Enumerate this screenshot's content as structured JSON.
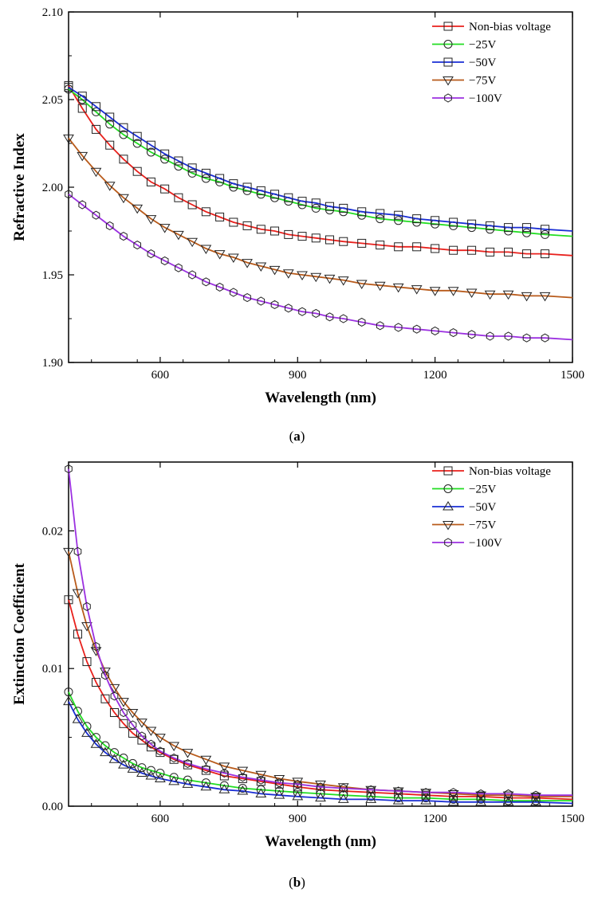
{
  "chart_data": [
    {
      "type": "line",
      "panel_label": "a",
      "xlabel": "Wavelength (nm)",
      "ylabel": "Refractive Index",
      "xlim": [
        400,
        1500
      ],
      "ylim": [
        1.9,
        2.1
      ],
      "xticks": [
        600,
        900,
        1200,
        1500
      ],
      "xtick_labels": [
        "600",
        "900",
        "1200",
        "1500"
      ],
      "yticks": [
        1.9,
        1.95,
        2.0,
        2.05,
        2.1
      ],
      "ytick_labels": [
        "1.90",
        "1.95",
        "2.00",
        "2.05",
        "2.10"
      ],
      "x": [
        400,
        430,
        460,
        490,
        520,
        550,
        580,
        610,
        640,
        670,
        700,
        730,
        760,
        790,
        820,
        850,
        880,
        910,
        940,
        970,
        1000,
        1040,
        1080,
        1120,
        1160,
        1200,
        1240,
        1280,
        1320,
        1360,
        1400,
        1440,
        1500
      ],
      "legend_position": "top-right",
      "series": [
        {
          "name": "Non-bias voltage",
          "color": "#e8201c",
          "marker": "square",
          "values": [
            2.058,
            2.045,
            2.033,
            2.024,
            2.016,
            2.009,
            2.003,
            1.999,
            1.994,
            1.99,
            1.986,
            1.983,
            1.98,
            1.978,
            1.976,
            1.975,
            1.973,
            1.972,
            1.971,
            1.97,
            1.969,
            1.968,
            1.967,
            1.966,
            1.966,
            1.965,
            1.964,
            1.964,
            1.963,
            1.963,
            1.962,
            1.962,
            1.961
          ]
        },
        {
          "name": "−25V",
          "color": "#22dd22",
          "marker": "circle",
          "values": [
            2.056,
            2.05,
            2.043,
            2.036,
            2.03,
            2.025,
            2.02,
            2.016,
            2.012,
            2.008,
            2.005,
            2.003,
            2.0,
            1.998,
            1.996,
            1.994,
            1.992,
            1.99,
            1.988,
            1.987,
            1.986,
            1.984,
            1.982,
            1.981,
            1.98,
            1.979,
            1.978,
            1.977,
            1.976,
            1.975,
            1.974,
            1.973,
            1.972
          ]
        },
        {
          "name": "−50V",
          "color": "#1a2ed4",
          "marker": "square",
          "values": [
            2.057,
            2.052,
            2.046,
            2.04,
            2.034,
            2.029,
            2.024,
            2.019,
            2.015,
            2.011,
            2.008,
            2.005,
            2.002,
            2.0,
            1.998,
            1.996,
            1.994,
            1.992,
            1.991,
            1.989,
            1.988,
            1.986,
            1.985,
            1.984,
            1.982,
            1.981,
            1.98,
            1.979,
            1.978,
            1.977,
            1.977,
            1.976,
            1.975
          ]
        },
        {
          "name": "−75V",
          "color": "#b85a1a",
          "marker": "triangle-down",
          "values": [
            2.028,
            2.018,
            2.009,
            2.001,
            1.994,
            1.988,
            1.982,
            1.977,
            1.973,
            1.969,
            1.965,
            1.962,
            1.96,
            1.957,
            1.955,
            1.953,
            1.951,
            1.95,
            1.949,
            1.948,
            1.947,
            1.945,
            1.944,
            1.943,
            1.942,
            1.941,
            1.941,
            1.94,
            1.939,
            1.939,
            1.938,
            1.938,
            1.937
          ]
        },
        {
          "name": "−100V",
          "color": "#9b30e0",
          "marker": "hexagon",
          "values": [
            1.996,
            1.99,
            1.984,
            1.978,
            1.972,
            1.967,
            1.962,
            1.958,
            1.954,
            1.95,
            1.946,
            1.943,
            1.94,
            1.937,
            1.935,
            1.933,
            1.931,
            1.929,
            1.928,
            1.926,
            1.925,
            1.923,
            1.921,
            1.92,
            1.919,
            1.918,
            1.917,
            1.916,
            1.915,
            1.915,
            1.914,
            1.914,
            1.913
          ]
        }
      ]
    },
    {
      "type": "line",
      "panel_label": "b",
      "xlabel": "Wavelength (nm)",
      "ylabel": "Extinction Coefficient",
      "xlim": [
        400,
        1500
      ],
      "ylim": [
        0,
        0.025
      ],
      "xticks": [
        600,
        900,
        1200,
        1500
      ],
      "xtick_labels": [
        "600",
        "900",
        "1200",
        "1500"
      ],
      "yticks": [
        0,
        0.01,
        0.02
      ],
      "ytick_labels": [
        "0.00",
        "0.01",
        "0.02"
      ],
      "x": [
        400,
        420,
        440,
        460,
        480,
        500,
        520,
        540,
        560,
        580,
        600,
        630,
        660,
        700,
        740,
        780,
        820,
        860,
        900,
        950,
        1000,
        1060,
        1120,
        1180,
        1240,
        1300,
        1360,
        1420,
        1500
      ],
      "legend_position": "top-right",
      "series": [
        {
          "name": "Non-bias voltage",
          "color": "#e8201c",
          "marker": "square",
          "values": [
            0.015,
            0.0125,
            0.0105,
            0.009,
            0.0078,
            0.0068,
            0.006,
            0.0053,
            0.0048,
            0.0043,
            0.0039,
            0.0034,
            0.003,
            0.0026,
            0.0022,
            0.002,
            0.0018,
            0.0016,
            0.0014,
            0.0012,
            0.0011,
            0.001,
            0.0009,
            0.0008,
            0.0007,
            0.0007,
            0.0006,
            0.0006,
            0.0005
          ]
        },
        {
          "name": "−25V",
          "color": "#22dd22",
          "marker": "circle",
          "values": [
            0.0083,
            0.0069,
            0.0058,
            0.005,
            0.0044,
            0.0039,
            0.0035,
            0.0031,
            0.0028,
            0.0026,
            0.0024,
            0.0021,
            0.0019,
            0.0017,
            0.0015,
            0.0013,
            0.0012,
            0.0011,
            0.001,
            0.0009,
            0.0008,
            0.0007,
            0.0006,
            0.0006,
            0.0005,
            0.0005,
            0.0004,
            0.0004,
            0.0004
          ]
        },
        {
          "name": "−50V",
          "color": "#1a2ed4",
          "marker": "triangle-up",
          "values": [
            0.0076,
            0.0063,
            0.0053,
            0.0045,
            0.0039,
            0.0034,
            0.003,
            0.0027,
            0.0024,
            0.0022,
            0.002,
            0.0018,
            0.0016,
            0.0014,
            0.0012,
            0.0011,
            0.0009,
            0.0008,
            0.0007,
            0.0006,
            0.0005,
            0.0005,
            0.0004,
            0.0004,
            0.0003,
            0.0003,
            0.0003,
            0.0003,
            0.0002
          ]
        },
        {
          "name": "−75V",
          "color": "#b85a1a",
          "marker": "triangle-down",
          "values": [
            0.0185,
            0.0155,
            0.0131,
            0.0113,
            0.0098,
            0.0086,
            0.0076,
            0.0068,
            0.0061,
            0.0055,
            0.005,
            0.0044,
            0.0039,
            0.0034,
            0.0029,
            0.0026,
            0.0023,
            0.002,
            0.0018,
            0.0016,
            0.0014,
            0.0012,
            0.0011,
            0.001,
            0.0009,
            0.0008,
            0.0008,
            0.0007,
            0.0007
          ]
        },
        {
          "name": "−100V",
          "color": "#9b30e0",
          "marker": "hexagon",
          "values": [
            0.0245,
            0.0185,
            0.0145,
            0.0116,
            0.0095,
            0.008,
            0.0068,
            0.0059,
            0.0051,
            0.0045,
            0.004,
            0.0035,
            0.0031,
            0.0027,
            0.0024,
            0.0021,
            0.0019,
            0.0017,
            0.0016,
            0.0014,
            0.0013,
            0.0012,
            0.0011,
            0.001,
            0.001,
            0.0009,
            0.0009,
            0.0008,
            0.0008
          ]
        }
      ]
    }
  ]
}
